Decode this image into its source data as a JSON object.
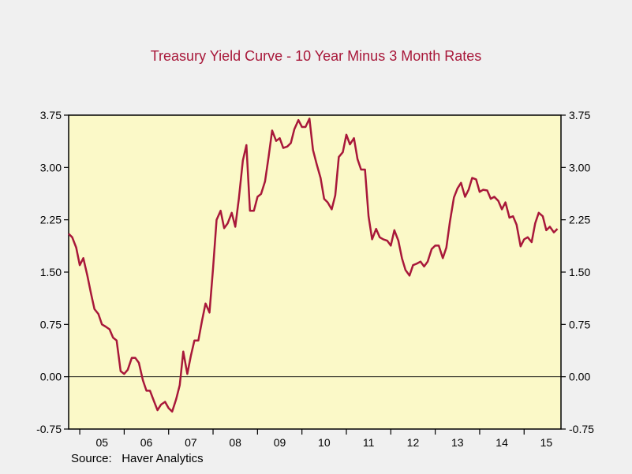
{
  "title": "Treasury Yield Curve - 10 Year Minus 3 Month Rates",
  "source": "Source:   Haver Analytics",
  "colors": {
    "line": "#a8183a",
    "plot_bg": "#fbf9c8",
    "page_bg": "#f0f0f0",
    "title": "#a8183a"
  },
  "chart_data": {
    "type": "line",
    "title": "Treasury Yield Curve - 10 Year Minus 3 Month Rates",
    "xlabel": "",
    "ylabel": "",
    "ylim": [
      -0.75,
      3.75
    ],
    "y_ticks": [
      "3.75",
      "3.00",
      "2.25",
      "1.50",
      "0.75",
      "0.00",
      "-0.75"
    ],
    "y_tick_values": [
      3.75,
      3.0,
      2.25,
      1.5,
      0.75,
      0.0,
      -0.75
    ],
    "dual_y_axis": true,
    "x_tick_labels": [
      "05",
      "06",
      "07",
      "08",
      "09",
      "10",
      "11",
      "12",
      "13",
      "14",
      "15"
    ],
    "xlim": [
      2004.75,
      2015.83
    ],
    "zero_line": true,
    "grid": false,
    "series": [
      {
        "values": [
          [
            2004.75,
            2.05
          ],
          [
            2004.83,
            2.0
          ],
          [
            2004.92,
            1.85
          ],
          [
            2005.0,
            1.6
          ],
          [
            2005.08,
            1.7
          ],
          [
            2005.17,
            1.45
          ],
          [
            2005.25,
            1.2
          ],
          [
            2005.33,
            0.97
          ],
          [
            2005.42,
            0.9
          ],
          [
            2005.5,
            0.75
          ],
          [
            2005.58,
            0.72
          ],
          [
            2005.67,
            0.68
          ],
          [
            2005.75,
            0.56
          ],
          [
            2005.83,
            0.52
          ],
          [
            2005.92,
            0.08
          ],
          [
            2006.0,
            0.04
          ],
          [
            2006.08,
            0.1
          ],
          [
            2006.17,
            0.27
          ],
          [
            2006.25,
            0.27
          ],
          [
            2006.33,
            0.2
          ],
          [
            2006.42,
            -0.05
          ],
          [
            2006.5,
            -0.2
          ],
          [
            2006.58,
            -0.2
          ],
          [
            2006.67,
            -0.35
          ],
          [
            2006.75,
            -0.48
          ],
          [
            2006.83,
            -0.4
          ],
          [
            2006.92,
            -0.36
          ],
          [
            2007.0,
            -0.45
          ],
          [
            2007.08,
            -0.5
          ],
          [
            2007.17,
            -0.32
          ],
          [
            2007.25,
            -0.12
          ],
          [
            2007.33,
            0.36
          ],
          [
            2007.42,
            0.04
          ],
          [
            2007.5,
            0.3
          ],
          [
            2007.58,
            0.52
          ],
          [
            2007.67,
            0.52
          ],
          [
            2007.75,
            0.8
          ],
          [
            2007.83,
            1.05
          ],
          [
            2007.92,
            0.92
          ],
          [
            2008.0,
            1.55
          ],
          [
            2008.08,
            2.25
          ],
          [
            2008.17,
            2.38
          ],
          [
            2008.25,
            2.13
          ],
          [
            2008.33,
            2.2
          ],
          [
            2008.42,
            2.35
          ],
          [
            2008.5,
            2.15
          ],
          [
            2008.58,
            2.55
          ],
          [
            2008.67,
            3.1
          ],
          [
            2008.75,
            3.32
          ],
          [
            2008.83,
            2.38
          ],
          [
            2008.92,
            2.38
          ],
          [
            2009.0,
            2.58
          ],
          [
            2009.08,
            2.62
          ],
          [
            2009.17,
            2.8
          ],
          [
            2009.25,
            3.15
          ],
          [
            2009.33,
            3.53
          ],
          [
            2009.42,
            3.38
          ],
          [
            2009.5,
            3.42
          ],
          [
            2009.58,
            3.28
          ],
          [
            2009.67,
            3.3
          ],
          [
            2009.75,
            3.35
          ],
          [
            2009.83,
            3.55
          ],
          [
            2009.92,
            3.68
          ],
          [
            2010.0,
            3.58
          ],
          [
            2010.08,
            3.58
          ],
          [
            2010.17,
            3.7
          ],
          [
            2010.25,
            3.25
          ],
          [
            2010.33,
            3.05
          ],
          [
            2010.42,
            2.85
          ],
          [
            2010.5,
            2.55
          ],
          [
            2010.58,
            2.5
          ],
          [
            2010.67,
            2.4
          ],
          [
            2010.75,
            2.6
          ],
          [
            2010.83,
            3.15
          ],
          [
            2010.92,
            3.22
          ],
          [
            2011.0,
            3.47
          ],
          [
            2011.08,
            3.33
          ],
          [
            2011.17,
            3.42
          ],
          [
            2011.25,
            3.12
          ],
          [
            2011.33,
            2.97
          ],
          [
            2011.42,
            2.97
          ],
          [
            2011.5,
            2.3
          ],
          [
            2011.58,
            1.97
          ],
          [
            2011.67,
            2.12
          ],
          [
            2011.75,
            2.0
          ],
          [
            2011.83,
            1.97
          ],
          [
            2011.92,
            1.95
          ],
          [
            2012.0,
            1.88
          ],
          [
            2012.08,
            2.1
          ],
          [
            2012.17,
            1.95
          ],
          [
            2012.25,
            1.7
          ],
          [
            2012.33,
            1.53
          ],
          [
            2012.42,
            1.45
          ],
          [
            2012.5,
            1.6
          ],
          [
            2012.58,
            1.62
          ],
          [
            2012.67,
            1.65
          ],
          [
            2012.75,
            1.58
          ],
          [
            2012.83,
            1.65
          ],
          [
            2012.92,
            1.83
          ],
          [
            2013.0,
            1.88
          ],
          [
            2013.08,
            1.88
          ],
          [
            2013.17,
            1.7
          ],
          [
            2013.25,
            1.85
          ],
          [
            2013.33,
            2.22
          ],
          [
            2013.42,
            2.57
          ],
          [
            2013.5,
            2.7
          ],
          [
            2013.58,
            2.78
          ],
          [
            2013.67,
            2.58
          ],
          [
            2013.75,
            2.68
          ],
          [
            2013.83,
            2.85
          ],
          [
            2013.92,
            2.83
          ],
          [
            2014.0,
            2.65
          ],
          [
            2014.08,
            2.68
          ],
          [
            2014.17,
            2.67
          ],
          [
            2014.25,
            2.55
          ],
          [
            2014.33,
            2.58
          ],
          [
            2014.42,
            2.52
          ],
          [
            2014.5,
            2.4
          ],
          [
            2014.58,
            2.5
          ],
          [
            2014.67,
            2.28
          ],
          [
            2014.75,
            2.3
          ],
          [
            2014.83,
            2.18
          ],
          [
            2014.92,
            1.87
          ],
          [
            2015.0,
            1.97
          ],
          [
            2015.08,
            2.0
          ],
          [
            2015.17,
            1.93
          ],
          [
            2015.25,
            2.2
          ],
          [
            2015.33,
            2.35
          ],
          [
            2015.42,
            2.3
          ],
          [
            2015.5,
            2.1
          ],
          [
            2015.58,
            2.15
          ],
          [
            2015.67,
            2.07
          ],
          [
            2015.75,
            2.12
          ]
        ]
      }
    ]
  }
}
